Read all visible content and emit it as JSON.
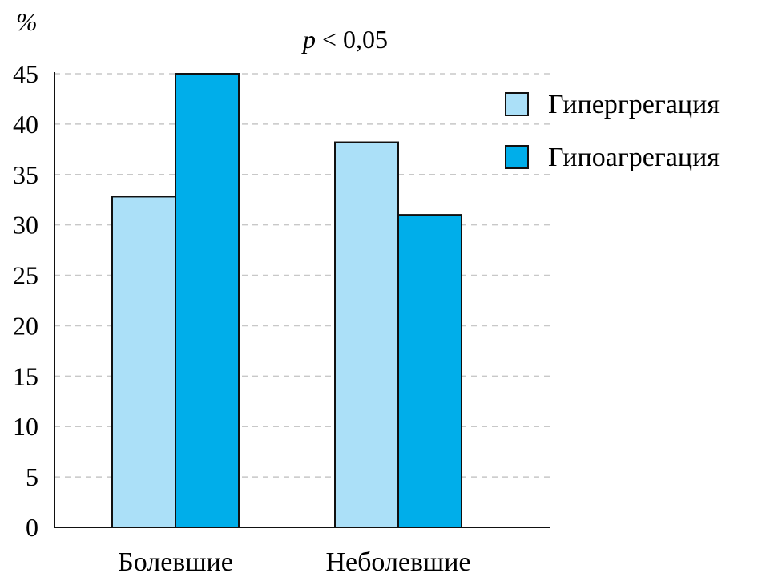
{
  "chart_data": {
    "type": "bar",
    "ylabel": "%",
    "annotation": {
      "p_symbol": "p",
      "text": " < 0,05"
    },
    "ylim": [
      0,
      45
    ],
    "yticks": [
      0,
      5,
      10,
      15,
      20,
      25,
      30,
      35,
      40,
      45
    ],
    "grid": true,
    "legend_position": "right",
    "categories": [
      "Болевшие",
      "Неболевшие"
    ],
    "series": [
      {
        "name": "Гипергрегация",
        "color": "#abe0f8",
        "values": [
          32.8,
          38.2
        ]
      },
      {
        "name": "Гипоагрегация",
        "color": "#00aeea",
        "values": [
          45,
          31
        ]
      }
    ]
  }
}
